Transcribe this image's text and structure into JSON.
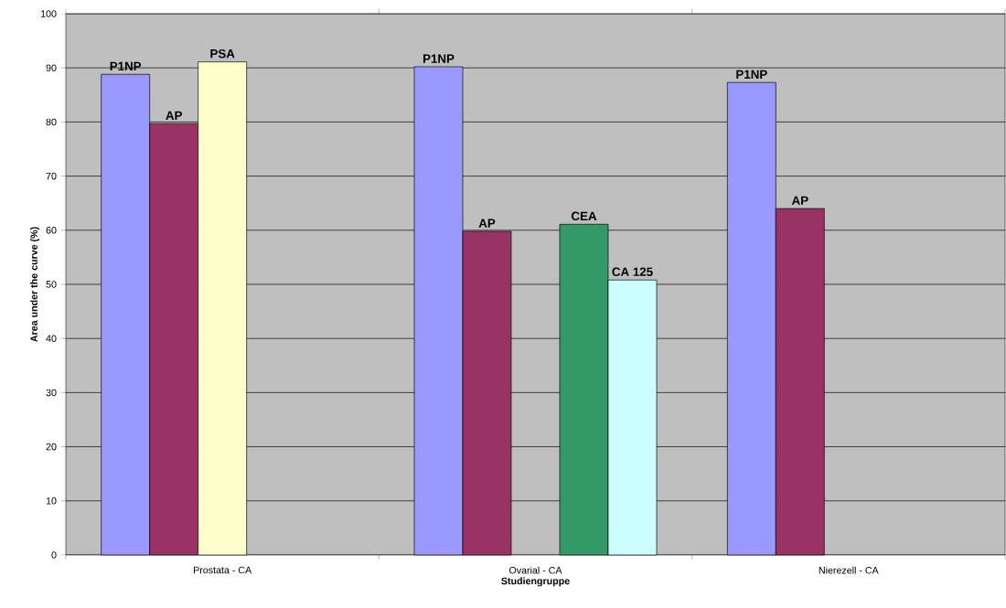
{
  "chart_data": {
    "type": "bar",
    "xlabel": "Studiengruppe",
    "ylabel": "Area under the curve (%)",
    "categories": [
      "Prostata - CA",
      "Ovarial - CA",
      "Nierezell - CA"
    ],
    "series": [
      {
        "name": "P1NP",
        "color": "#9999ff",
        "values": [
          88.8,
          90.2,
          87.3
        ]
      },
      {
        "name": "AP",
        "color": "#993366",
        "values": [
          79.7,
          59.8,
          64.0
        ]
      },
      {
        "name": "PSA",
        "color": "#ffffcc",
        "values": [
          91.1,
          null,
          null
        ]
      },
      {
        "name": "CEA",
        "color": "#339966",
        "values": [
          null,
          61.1,
          null
        ]
      },
      {
        "name": "CA 125",
        "color": "#ccffff",
        "values": [
          null,
          50.8,
          null
        ]
      }
    ],
    "ylim": [
      0,
      100
    ],
    "yticks": [
      0,
      10,
      20,
      30,
      40,
      50,
      60,
      70,
      80,
      90,
      100
    ],
    "grid": "y"
  }
}
